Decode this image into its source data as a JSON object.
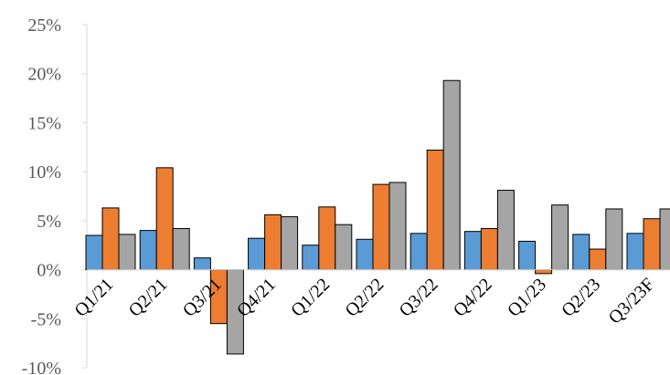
{
  "chart_data": {
    "type": "bar",
    "categories": [
      "Q1/21",
      "Q2/21",
      "Q3/21",
      "Q4/21",
      "Q1/22",
      "Q2/22",
      "Q3/22",
      "Q4/22",
      "Q1/23",
      "Q2/23",
      "Q3/23F"
    ],
    "series": [
      {
        "color": "#5b9bd5",
        "values": [
          3.5,
          4.0,
          1.2,
          3.2,
          2.5,
          3.1,
          3.7,
          3.9,
          2.9,
          3.6,
          3.7
        ]
      },
      {
        "color": "#ed7d31",
        "values": [
          6.3,
          10.4,
          -5.5,
          5.6,
          6.4,
          8.7,
          12.2,
          4.2,
          -0.4,
          2.1,
          5.2
        ]
      },
      {
        "color": "#a5a5a5",
        "values": [
          3.6,
          4.2,
          -8.6,
          5.4,
          4.6,
          8.9,
          19.3,
          8.1,
          6.6,
          6.2,
          6.2
        ]
      }
    ],
    "yticks": [
      "25%",
      "20%",
      "15%",
      "10%",
      "5%",
      "0%",
      "-5%",
      "-10%"
    ],
    "ylim": [
      -10,
      25
    ],
    "title": "",
    "xlabel": "",
    "ylabel": "",
    "grid": false,
    "legend": "none"
  }
}
